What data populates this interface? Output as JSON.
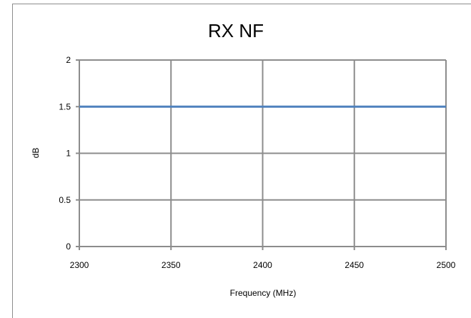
{
  "chart_data": {
    "type": "line",
    "title": "RX NF",
    "xlabel": "Frequency (MHz)",
    "ylabel": "dB",
    "xlim": [
      2300,
      2500
    ],
    "ylim": [
      0,
      2
    ],
    "x_ticks": [
      "2300",
      "2350",
      "2400",
      "2450",
      "2500"
    ],
    "y_ticks": [
      "0",
      "0.5",
      "1",
      "1.5",
      "2"
    ],
    "grid": true,
    "legend": "none",
    "series": [
      {
        "x": [
          2300,
          2500
        ],
        "y": [
          1.5,
          1.5
        ],
        "color": "#4f81bd"
      }
    ],
    "colors": {
      "grid": "#8c8c8c",
      "axis": "#8c8c8c",
      "frame": "#8c8c8c"
    }
  }
}
